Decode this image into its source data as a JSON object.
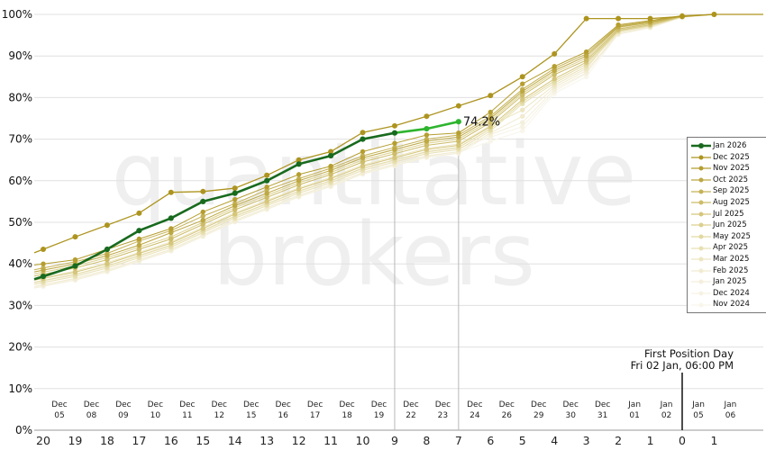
{
  "watermark": {
    "line1": "quantitative",
    "line2": "brokers"
  },
  "annotations": {
    "last_value_label": "74.2%",
    "first_position": {
      "title": "First Position Day",
      "subtitle": "Fri 02 Jan, 06:00 PM"
    }
  },
  "chart_data": {
    "type": "line",
    "title": "",
    "ylabel": "",
    "xlabel": "",
    "ylim": [
      0,
      100
    ],
    "grid": "horizontal",
    "legend_position": "right",
    "y_ticks": [
      "100%",
      "90%",
      "80%",
      "70%",
      "60%",
      "50%",
      "40%",
      "30%",
      "20%",
      "10%",
      "0%"
    ],
    "x_dates": [
      [
        "Dec",
        "05"
      ],
      [
        "Dec",
        "08"
      ],
      [
        "Dec",
        "09"
      ],
      [
        "Dec",
        "10"
      ],
      [
        "Dec",
        "11"
      ],
      [
        "Dec",
        "12"
      ],
      [
        "Dec",
        "15"
      ],
      [
        "Dec",
        "16"
      ],
      [
        "Dec",
        "17"
      ],
      [
        "Dec",
        "18"
      ],
      [
        "Dec",
        "19"
      ],
      [
        "Dec",
        "22"
      ],
      [
        "Dec",
        "23"
      ],
      [
        "Dec",
        "24"
      ],
      [
        "Dec",
        "26"
      ],
      [
        "Dec",
        "29"
      ],
      [
        "Dec",
        "30"
      ],
      [
        "Dec",
        "31"
      ],
      [
        "Jan",
        "01"
      ],
      [
        "Jan",
        "02"
      ],
      [
        "Jan",
        "05"
      ],
      [
        "Jan",
        "06"
      ]
    ],
    "x_countdown": [
      "20",
      "19",
      "18",
      "17",
      "16",
      "15",
      "14",
      "13",
      "12",
      "11",
      "10",
      "9",
      "8",
      "7",
      "6",
      "5",
      "4",
      "3",
      "2",
      "1",
      "0",
      "1"
    ],
    "reference_day_indices": [
      11,
      13
    ],
    "first_position_index": 20,
    "reference_line_color": "#b8b8b8",
    "first_position_line_color": "#111111",
    "series": [
      {
        "name": "Jan 2026",
        "color": "#186a1e",
        "highlight_color": "#2eb42e",
        "highlight_from": 11,
        "values": [
          37,
          39.5,
          43.5,
          48,
          51,
          55,
          57,
          60,
          64,
          66,
          70,
          71.5,
          72.5,
          74.2
        ]
      },
      {
        "name": "Dec 2025",
        "color": "#ad941f",
        "values": [
          43.5,
          46.5,
          49.3,
          52.2,
          57.2,
          57.4,
          58.2,
          61.3,
          65,
          67,
          71.6,
          73.2,
          75.5,
          78,
          80.5,
          85,
          90.5,
          99,
          99,
          99,
          99.5,
          100
        ]
      },
      {
        "name": "Nov 2025",
        "color": "#b59e30",
        "values": [
          40,
          41,
          43.5,
          46,
          48.5,
          52.5,
          55.5,
          58.5,
          61.5,
          63.5,
          67,
          69,
          71,
          71.5,
          76.5,
          83.3,
          87.5,
          91,
          97.5,
          98.5,
          99.7,
          100
        ]
      },
      {
        "name": "Oct 2025",
        "color": "#bda843",
        "values": [
          38.5,
          40,
          42,
          44.5,
          47.5,
          50.5,
          54,
          57,
          60,
          62.5,
          65.5,
          67.5,
          69.5,
          70.5,
          75,
          81.5,
          86.5,
          90,
          97,
          98.1,
          99.6,
          100
        ]
      },
      {
        "name": "Sep 2025",
        "color": "#c5b256",
        "values": [
          39,
          40.5,
          42.5,
          45.5,
          48,
          51.5,
          54.5,
          57.8,
          60.5,
          63,
          66,
          68,
          70,
          71,
          75.5,
          82,
          87,
          90.5,
          97.2,
          98.3,
          99.6,
          100
        ]
      },
      {
        "name": "Aug 2025",
        "color": "#cdbc69",
        "values": [
          37.5,
          39,
          41,
          43.5,
          46,
          49.5,
          53,
          56,
          59,
          61.5,
          64.5,
          66.5,
          68.5,
          69.5,
          74,
          80.5,
          85.5,
          89,
          96.5,
          97.8,
          99.5,
          100
        ]
      },
      {
        "name": "Jul 2025",
        "color": "#d5c67c",
        "values": [
          36.5,
          38,
          40,
          42.5,
          45,
          48.5,
          52,
          55,
          58,
          60.5,
          63.5,
          65.5,
          67.5,
          68.5,
          73,
          79.5,
          84.5,
          88.5,
          96.2,
          97.5,
          99.5,
          100
        ]
      },
      {
        "name": "Jun 2025",
        "color": "#dcd08f",
        "values": [
          38,
          39.5,
          41.5,
          44,
          46.5,
          50,
          53.5,
          56.5,
          59.5,
          62,
          65,
          67,
          69,
          70,
          74.5,
          81,
          86,
          89.5,
          96.8,
          98,
          99.5,
          100
        ]
      },
      {
        "name": "May 2025",
        "color": "#e2d9a2",
        "values": [
          36,
          37.5,
          39.5,
          42,
          44.5,
          48,
          51.5,
          54.5,
          57.5,
          60,
          63,
          65,
          67,
          68,
          72.5,
          79,
          84,
          88,
          96,
          97.3,
          99.4,
          100
        ]
      },
      {
        "name": "Apr 2025",
        "color": "#e8e0b3",
        "values": [
          35.5,
          37,
          39,
          41.5,
          44,
          47.5,
          51,
          54,
          57,
          59.5,
          62.5,
          64.5,
          66.5,
          67.5,
          72,
          78.5,
          83.5,
          87.5,
          95.8,
          97.2,
          99.4,
          100
        ]
      },
      {
        "name": "Mar 2025",
        "color": "#ede6c2",
        "values": [
          36.8,
          38.3,
          40.3,
          42.8,
          45.3,
          48.8,
          52.3,
          55.3,
          58.3,
          60.8,
          63.8,
          65.8,
          67.8,
          68.8,
          73.3,
          77,
          83,
          87,
          96.4,
          97.6,
          99.5,
          100
        ]
      },
      {
        "name": "Feb 2025",
        "color": "#f1ebd0",
        "values": [
          35,
          36.5,
          38.5,
          41,
          43.5,
          47,
          50.5,
          53.5,
          56.5,
          59,
          62,
          64,
          66,
          67,
          71.5,
          75.5,
          82.5,
          86.5,
          95.5,
          97,
          99.3,
          100
        ]
      },
      {
        "name": "Jan 2025",
        "color": "#f4efdb",
        "values": [
          34.6,
          36.1,
          38.1,
          40.6,
          43.1,
          46.6,
          50.1,
          53.1,
          56.1,
          58.6,
          61.6,
          63.6,
          65.6,
          66.6,
          71.1,
          74,
          82,
          86,
          95.2,
          96.8,
          99.3,
          100
        ]
      },
      {
        "name": "Dec 2024",
        "color": "#f6f2e3",
        "values": [
          35.8,
          37.3,
          39.3,
          41.8,
          44.3,
          47.8,
          51.3,
          54.3,
          57.3,
          59.8,
          62.8,
          64.8,
          66.8,
          67.8,
          70.5,
          73,
          81.5,
          85.8,
          96,
          97.4,
          99.4,
          100
        ]
      },
      {
        "name": "Nov 2024",
        "color": "#f8f5ea",
        "values": [
          34.8,
          36.3,
          38.3,
          40.8,
          43.3,
          46.8,
          50.3,
          53.3,
          56.3,
          58.8,
          61.8,
          63.8,
          65.8,
          66.8,
          69.5,
          72,
          81,
          85,
          95.4,
          96.9,
          99.3,
          100
        ]
      }
    ]
  }
}
